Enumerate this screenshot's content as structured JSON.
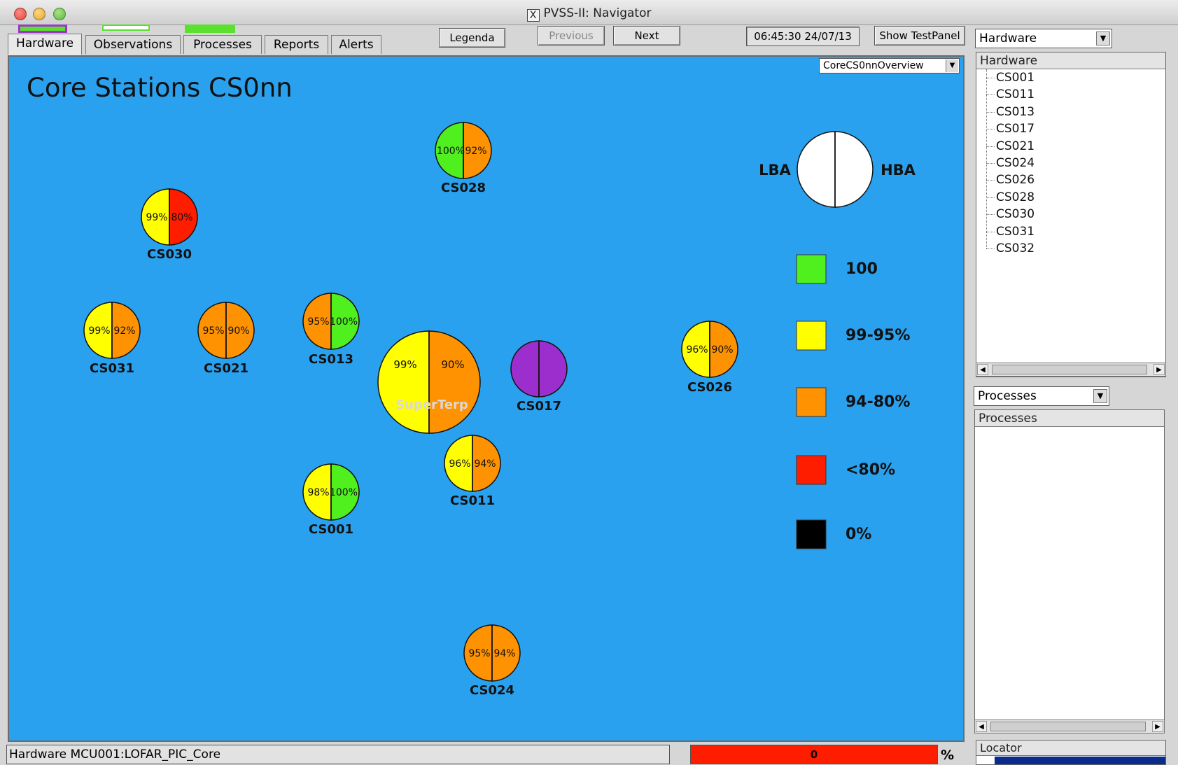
{
  "window": {
    "title": "PVSS-II: Navigator",
    "x_glyph": "X"
  },
  "tabs": [
    {
      "label": "Hardware",
      "active": true
    },
    {
      "label": "Observations",
      "active": false
    },
    {
      "label": "Processes",
      "active": false
    },
    {
      "label": "Reports",
      "active": false
    },
    {
      "label": "Alerts",
      "active": false
    }
  ],
  "toolbar": {
    "legenda": "Legenda",
    "previous": "Previous",
    "next": "Next",
    "datetime": "06:45:30  24/07/13",
    "show_testpanel": "Show TestPanel"
  },
  "main": {
    "panel_select": "CoreCS0nnOverview",
    "title": "Core Stations CS0nn"
  },
  "colors": {
    "background": "#2aa1ee",
    "green": "#4ff01e",
    "yellow": "#ffff00",
    "orange": "#ff9200",
    "red": "#ff1d00",
    "purple": "#9b2ecc",
    "black": "#000000"
  },
  "legend": {
    "left_label": "LBA",
    "right_label": "HBA",
    "entries": [
      {
        "color": "green",
        "label": "100"
      },
      {
        "color": "yellow",
        "label": "99-95%"
      },
      {
        "color": "orange",
        "label": "94-80%"
      },
      {
        "color": "red",
        "label": "<80%"
      },
      {
        "color": "black",
        "label": "0%"
      }
    ]
  },
  "stations": [
    {
      "name": "CS028",
      "lba": "100%",
      "hba": "92%",
      "lba_color": "green",
      "hba_color": "orange"
    },
    {
      "name": "CS030",
      "lba": "99%",
      "hba": "80%",
      "lba_color": "yellow",
      "hba_color": "red"
    },
    {
      "name": "CS031",
      "lba": "99%",
      "hba": "92%",
      "lba_color": "yellow",
      "hba_color": "orange"
    },
    {
      "name": "CS021",
      "lba": "95%",
      "hba": "90%",
      "lba_color": "orange",
      "hba_color": "orange"
    },
    {
      "name": "CS013",
      "lba": "95%",
      "hba": "100%",
      "lba_color": "orange",
      "hba_color": "green"
    },
    {
      "name": "",
      "lba": "99%",
      "hba": "90%",
      "lba_color": "yellow",
      "hba_color": "orange",
      "center_label": "SuperTerp"
    },
    {
      "name": "CS017",
      "lba": "",
      "hba": "",
      "lba_color": "purple",
      "hba_color": "purple"
    },
    {
      "name": "CS026",
      "lba": "96%",
      "hba": "90%",
      "lba_color": "yellow",
      "hba_color": "orange"
    },
    {
      "name": "CS011",
      "lba": "96%",
      "hba": "94%",
      "lba_color": "yellow",
      "hba_color": "orange"
    },
    {
      "name": "CS001",
      "lba": "98%",
      "hba": "100%",
      "lba_color": "yellow",
      "hba_color": "green"
    },
    {
      "name": "CS024",
      "lba": "95%",
      "hba": "94%",
      "lba_color": "orange",
      "hba_color": "orange"
    }
  ],
  "sidebar": {
    "hardware_combo": "Hardware",
    "hardware_header": "Hardware",
    "hardware_items": [
      "CS001",
      "CS011",
      "CS013",
      "CS017",
      "CS021",
      "CS024",
      "CS026",
      "CS028",
      "CS030",
      "CS031",
      "CS032"
    ],
    "processes_combo": "Processes",
    "processes_header": "Processes",
    "locator_header": "Locator"
  },
  "status": {
    "path": "Hardware MCU001:LOFAR_PIC_Core",
    "value": "0",
    "unit": "%"
  }
}
